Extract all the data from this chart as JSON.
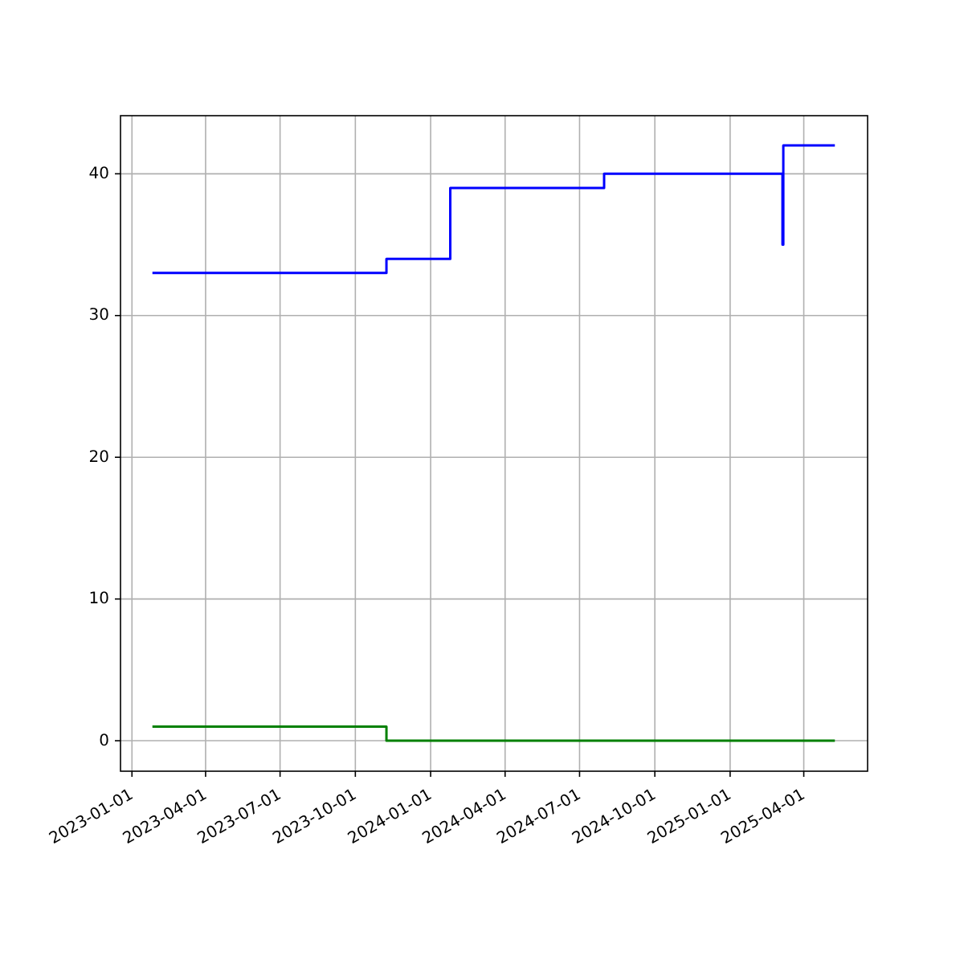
{
  "chart_data": {
    "type": "step",
    "xlim": [
      "2022-12-18",
      "2025-06-18"
    ],
    "ylim": [
      -2.15,
      44.1
    ],
    "xticks": [
      "2023-01-01",
      "2023-04-01",
      "2023-07-01",
      "2023-10-01",
      "2024-01-01",
      "2024-04-01",
      "2024-07-01",
      "2024-10-01",
      "2025-01-01",
      "2025-04-01"
    ],
    "yticks": [
      0,
      10,
      20,
      30,
      40
    ],
    "grid": true,
    "series": [
      {
        "color": "#0000ff",
        "x": [
          "2023-01-26",
          "2023-11-08",
          "2024-01-25",
          "2024-07-31",
          "2025-03-06",
          "2025-03-07",
          "2025-05-09"
        ],
        "values": [
          33,
          34,
          39,
          40,
          35,
          42,
          42
        ]
      },
      {
        "color": "#008000",
        "x": [
          "2023-01-26",
          "2023-11-08",
          "2025-05-09"
        ],
        "values": [
          1,
          0,
          0
        ]
      }
    ]
  }
}
